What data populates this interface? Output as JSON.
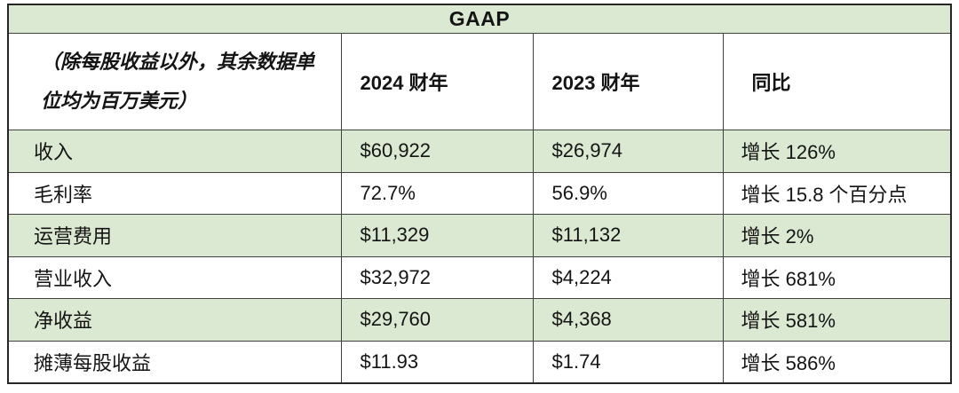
{
  "chart_data": {
    "type": "table",
    "title": "GAAP",
    "unit_note": "（除每股收益以外，其余数据单位均为百万美元）",
    "columns": [
      "（除每股收益以外，其余数据单位均为百万美元）",
      "2024 财年",
      "2023 财年",
      "同比"
    ],
    "rows": [
      [
        "收入",
        "$60,922",
        "$26,974",
        "增长 126%"
      ],
      [
        "毛利率",
        "72.7%",
        "56.9%",
        "增长 15.8 个百分点"
      ],
      [
        "运营费用",
        "$11,329",
        "$11,132",
        "增长 2%"
      ],
      [
        "营业收入",
        "$32,972",
        "$4,224",
        "增长 681%"
      ],
      [
        "净收益",
        "$29,760",
        "$4,368",
        "增长 581%"
      ],
      [
        "摊薄每股收益",
        "$11.93",
        "$1.74",
        "增长 586%"
      ]
    ],
    "layout": {
      "zebra": "odd data rows green, even white",
      "title_row_background": "green",
      "header_row_background": "white",
      "value_alignment": "left"
    }
  },
  "style": {
    "band_green": "#dbe9d3",
    "border_color": "#404040",
    "border_outer": "#262626",
    "text_color": "#141414",
    "background": "#ffffff"
  }
}
